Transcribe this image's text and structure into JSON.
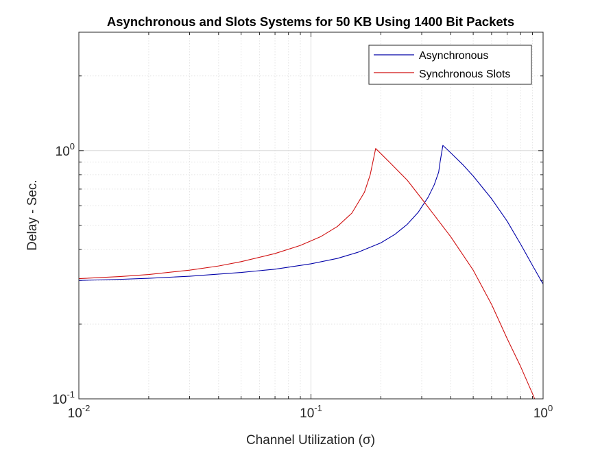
{
  "chart_data": {
    "type": "line",
    "title": "Asynchronous and Slots Systems for 50 KB Using 1400 Bit Packets",
    "xlabel": "Channel Utilization (σ)",
    "ylabel": "Delay - Sec.",
    "xscale": "log",
    "yscale": "log",
    "xlim": [
      0.01,
      1
    ],
    "ylim": [
      0.1,
      3
    ],
    "xticks": [
      {
        "base": "10",
        "exp": "-2",
        "value": 0.01
      },
      {
        "base": "10",
        "exp": "-1",
        "value": 0.1
      },
      {
        "base": "10",
        "exp": "0",
        "value": 1
      }
    ],
    "yticks": [
      {
        "base": "10",
        "exp": "-1",
        "value": 0.1
      },
      {
        "base": "10",
        "exp": "0",
        "value": 1
      }
    ],
    "grid": true,
    "legend_position": "top-right",
    "series": [
      {
        "name": "Asynchronous",
        "color": "#0000a8",
        "x": [
          0.01,
          0.015,
          0.02,
          0.03,
          0.05,
          0.07,
          0.1,
          0.13,
          0.16,
          0.2,
          0.23,
          0.26,
          0.29,
          0.32,
          0.34,
          0.355,
          0.36,
          0.37,
          0.4,
          0.45,
          0.5,
          0.6,
          0.7,
          0.8,
          0.9,
          1.0
        ],
        "y": [
          0.3,
          0.303,
          0.306,
          0.312,
          0.323,
          0.333,
          0.35,
          0.368,
          0.39,
          0.425,
          0.46,
          0.505,
          0.565,
          0.65,
          0.73,
          0.82,
          0.9,
          1.05,
          0.98,
          0.88,
          0.79,
          0.64,
          0.52,
          0.42,
          0.345,
          0.29
        ]
      },
      {
        "name": "Synchronous Slots",
        "color": "#d01010",
        "x": [
          0.01,
          0.015,
          0.02,
          0.03,
          0.04,
          0.05,
          0.07,
          0.09,
          0.11,
          0.13,
          0.15,
          0.17,
          0.18,
          0.19,
          0.22,
          0.26,
          0.3,
          0.35,
          0.4,
          0.5,
          0.6,
          0.7,
          0.8,
          0.9,
          0.95
        ],
        "y": [
          0.305,
          0.311,
          0.317,
          0.33,
          0.343,
          0.357,
          0.385,
          0.415,
          0.45,
          0.495,
          0.56,
          0.68,
          0.8,
          1.02,
          0.89,
          0.76,
          0.64,
          0.53,
          0.45,
          0.33,
          0.24,
          0.175,
          0.135,
          0.105,
          0.093
        ]
      }
    ]
  }
}
